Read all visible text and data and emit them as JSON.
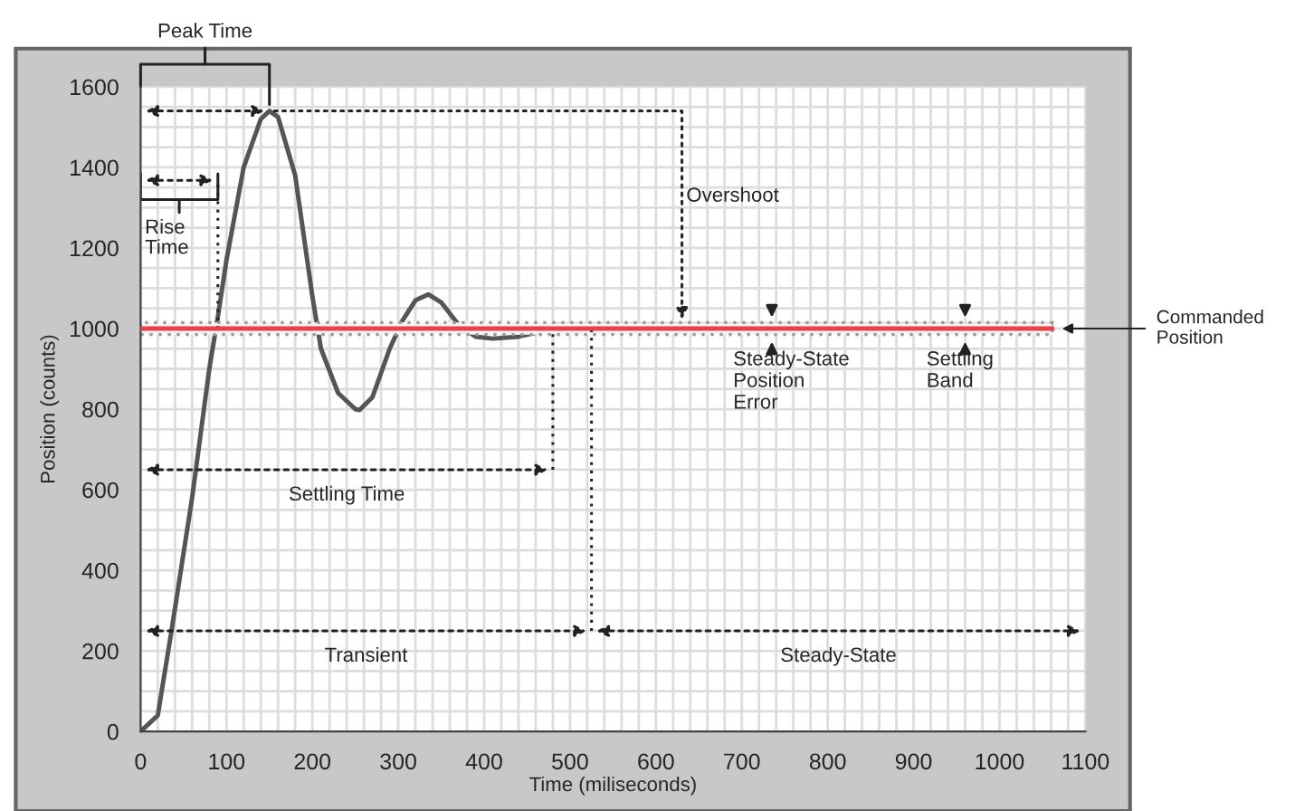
{
  "chart_data": {
    "type": "line",
    "xlabel": "Time (miliseconds)",
    "ylabel": "Position (counts)",
    "xlim": [
      0,
      1100
    ],
    "ylim": [
      0,
      1600
    ],
    "xticks": [
      0,
      100,
      200,
      300,
      400,
      500,
      600,
      700,
      800,
      900,
      1000,
      1100
    ],
    "yticks": [
      0,
      200,
      400,
      600,
      800,
      1000,
      1200,
      1400,
      1600
    ],
    "grid": true,
    "marker": "none",
    "line_style": "solid",
    "series": [
      {
        "color": "#555555",
        "x": [
          0,
          20,
          36,
          60,
          80,
          90,
          100,
          120,
          140,
          150,
          160,
          180,
          200,
          210,
          230,
          250,
          255,
          270,
          290,
          305,
          320,
          335,
          350,
          370,
          390,
          410,
          440,
          460,
          475,
          480,
          1060
        ],
        "values": [
          0,
          40,
          250,
          580,
          900,
          1030,
          1170,
          1400,
          1520,
          1540,
          1525,
          1380,
          1080,
          950,
          840,
          800,
          798,
          830,
          950,
          1020,
          1070,
          1085,
          1065,
          1010,
          980,
          975,
          980,
          990,
          1005,
          1010,
          1010
        ]
      }
    ],
    "bands": [
      {
        "axis": "y",
        "from": 985,
        "to": 1015,
        "color": "#999999"
      }
    ],
    "ref_lines": [
      {
        "axis": "y",
        "value": 1000,
        "color": "#e8404a",
        "label": "Commanded Position"
      },
      {
        "axis": "x",
        "value": 90,
        "color": "#222222",
        "line_style": "dotted"
      },
      {
        "axis": "x",
        "value": 480,
        "color": "#222222",
        "line_style": "dotted"
      },
      {
        "axis": "x",
        "value": 525,
        "color": "#222222",
        "line_style": "dotted"
      }
    ],
    "annotations": [
      "Peak Time",
      "Rise Time",
      "Overshoot",
      {
        "text": "Steady-State\nPosition\nError",
        "x": 735,
        "y": 985
      },
      {
        "text": "Settling Band",
        "x": 960,
        "y": 985
      },
      "Settling Time",
      "Transient",
      "Steady-State"
    ]
  }
}
